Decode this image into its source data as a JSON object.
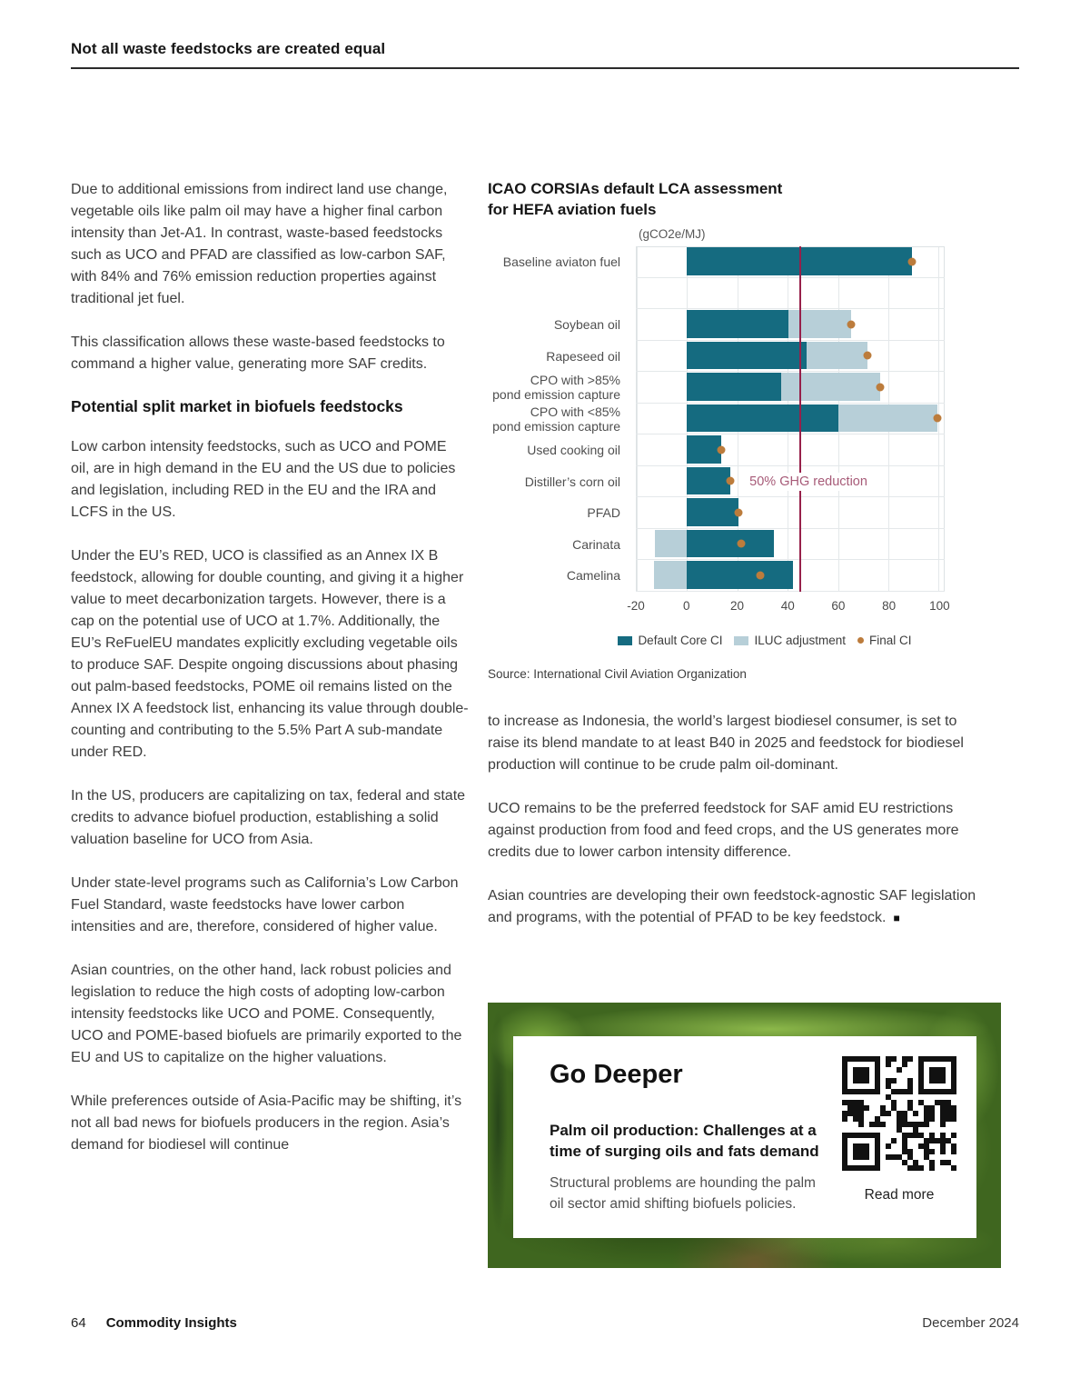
{
  "header": {
    "title": "Not all waste feedstocks are created equal"
  },
  "left_column": {
    "intro_paragraphs": [
      "Due to additional emissions from indirect land use change, vegetable oils like palm oil may have a higher final carbon intensity than Jet-A1. In contrast, waste-based feedstocks such as UCO and PFAD are classified as low-carbon SAF, with 84% and 76% emission reduction properties against traditional jet fuel.",
      "This classification allows these waste-based feedstocks to command a higher value, generating more SAF credits."
    ],
    "section_heading": "Potential split market in biofuels feedstocks",
    "paragraphs": [
      "Low carbon intensity feedstocks, such as UCO and POME oil, are in high demand in the EU and the US due to policies and legislation, including RED in the EU and the IRA and LCFS in the US.",
      "Under the EU’s RED, UCO is classified as an Annex IX B feedstock, allowing for double counting, and giving it a higher value to meet decarbonization targets. However, there is a cap on the potential use of UCO at 1.7%. Additionally, the EU’s ReFuelEU mandates explicitly excluding vegetable oils to produce SAF. Despite ongoing discussions about phasing out palm-based feedstocks, POME oil remains listed on the Annex IX A feedstock list, enhancing its value through double-counting and contributing to the 5.5% Part A sub-mandate under RED.",
      "In the US, producers are capitalizing on tax, federal and state credits to advance biofuel production, establishing a solid valuation baseline for UCO from Asia.",
      "Under state-level programs such as California’s Low Carbon Fuel Standard, waste feedstocks have lower carbon intensities and are, therefore, considered of higher value.",
      "Asian countries, on the other hand, lack robust policies and legislation to reduce the high costs of adopting low-carbon intensity feedstocks like UCO and POME. Consequently, UCO and POME-based biofuels are primarily exported to the EU and US to capitalize on the higher valuations.",
      "While preferences outside of Asia-Pacific may be shifting, it’s not all bad news for biofuels producers in the region. Asia’s demand for biodiesel will continue"
    ]
  },
  "chart_data": {
    "type": "bar",
    "orientation": "horizontal",
    "title": "ICAO CORSIAs default LCA assessment for HEFA aviation fuels",
    "title_lines": [
      "ICAO CORSIAs default LCA assessment",
      "for HEFA aviation fuels"
    ],
    "unit_label": "(gCO2e/MJ)",
    "xlim": [
      -20,
      102
    ],
    "xticks": [
      -20,
      0,
      20,
      40,
      60,
      80,
      100
    ],
    "grid": "vertical",
    "threshold": {
      "value": 44.5,
      "label": "50% GHG reduction"
    },
    "rows": [
      {
        "label_lines": [
          "Baseline aviaton fuel"
        ],
        "core": 89.0,
        "iluc": 0,
        "final": 89.0,
        "gap_after": true
      },
      {
        "label_lines": [
          "Soybean oil"
        ],
        "core": 40.4,
        "iluc": 24.5,
        "final": 64.9
      },
      {
        "label_lines": [
          "Rapeseed oil"
        ],
        "core": 47.4,
        "iluc": 24.1,
        "final": 71.5
      },
      {
        "label_lines": [
          "CPO with >85%",
          "pond emission capture"
        ],
        "core": 37.4,
        "iluc": 39.1,
        "final": 76.5
      },
      {
        "label_lines": [
          "CPO with <85%",
          "pond emission capture"
        ],
        "core": 60.0,
        "iluc": 39.1,
        "final": 99.1
      },
      {
        "label_lines": [
          "Used cooking oil"
        ],
        "core": 13.9,
        "iluc": 0,
        "final": 13.9
      },
      {
        "label_lines": [
          "Distiller’s corn oil"
        ],
        "core": 17.2,
        "iluc": 0,
        "final": 17.2
      },
      {
        "label_lines": [
          "PFAD"
        ],
        "core": 20.7,
        "iluc": 0,
        "final": 20.7
      },
      {
        "label_lines": [
          "Carinata"
        ],
        "core": 34.4,
        "iluc": -12.6,
        "final": 21.8
      },
      {
        "label_lines": [
          "Camelina"
        ],
        "core": 42.0,
        "iluc": -12.9,
        "final": 29.1
      }
    ],
    "legend": [
      {
        "label": "Default Core CI",
        "swatch": "core"
      },
      {
        "label": "ILUC adjustment",
        "swatch": "iluc"
      },
      {
        "label": "Final CI",
        "swatch": "final"
      }
    ],
    "legend_position": "bottom",
    "source": "Source: International Civil Aviation Organization",
    "colors": {
      "core": "#156B80",
      "iluc": "#B7CFD8",
      "final": "#BC7C3C",
      "threshold_line": "#97204A",
      "threshold_label": "#A75B78"
    }
  },
  "right_column": {
    "paragraphs": [
      "to increase as Indonesia, the world’s largest biodiesel consumer, is set to raise its blend mandate to at least B40 in 2025 and feedstock for biodiesel production will continue to be crude palm oil-dominant.",
      "UCO remains to be the preferred feedstock for SAF amid EU restrictions against production from food and feed crops, and the US generates more credits due to lower carbon intensity difference.",
      "Asian countries are developing their own feedstock-agnostic SAF legislation and programs, with the potential of PFAD to be key feedstock."
    ],
    "end_mark": "■"
  },
  "go_deeper": {
    "title": "Go Deeper",
    "heading": "Palm oil production: Challenges at a time of surging oils and fats demand",
    "body": "Structural problems are hounding the palm oil sector amid shifting biofuels policies.",
    "read_more": "Read more"
  },
  "footer": {
    "page_number": "64",
    "brand": "Commodity Insights",
    "date": "December 2024"
  }
}
